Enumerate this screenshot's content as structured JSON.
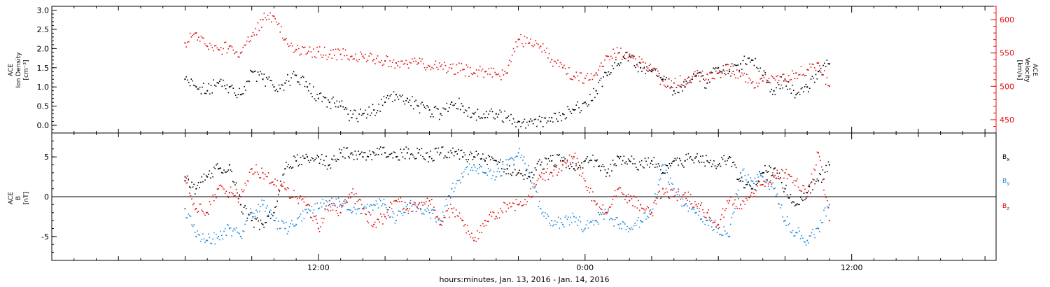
{
  "chart_data": [
    {
      "type": "scatter",
      "panel": "density-velocity",
      "left_axis": {
        "label_lines": [
          "ACE",
          "Ion Density",
          "[cm⁻³]"
        ],
        "range": [
          -0.2,
          3.1
        ],
        "ticks": [
          "0.0",
          "0.5",
          "1.0",
          "1.5",
          "2.0",
          "2.5",
          "3.0"
        ],
        "tick_values": [
          0.0,
          0.5,
          1.0,
          1.5,
          2.0,
          2.5,
          3.0
        ]
      },
      "right_axis": {
        "label_lines": [
          "ACE",
          "Velocity",
          "[km/s]"
        ],
        "range": [
          430,
          620
        ],
        "ticks": [
          "450",
          "500",
          "550",
          "600"
        ],
        "tick_values": [
          450,
          500,
          550,
          600
        ],
        "color": "#e01010"
      },
      "series": [
        {
          "axis": "left",
          "color": "#000000",
          "x": [
            0.0,
            0.5,
            1.0,
            1.5,
            2.0,
            2.5,
            3.0,
            3.5,
            4.0,
            4.5,
            5.0,
            5.5,
            6.0,
            6.5,
            7.0,
            7.5,
            8.0,
            8.5,
            9.0,
            9.5,
            10.0,
            10.5,
            11.0,
            11.5,
            12.0,
            12.5,
            13.0,
            13.5,
            14.0,
            14.5,
            15.0,
            15.5,
            16.0,
            16.5,
            17.0,
            17.5,
            18.0,
            18.5,
            19.0,
            19.5,
            20.0,
            20.5,
            21.0,
            21.5,
            22.0,
            22.5,
            23.0,
            23.5,
            24.0,
            24.5,
            25.0,
            25.5,
            26.0,
            26.5,
            27.0,
            27.5,
            28.0,
            28.5,
            29.0
          ],
          "values": [
            1.2,
            1.0,
            0.9,
            1.1,
            1.0,
            0.8,
            1.4,
            1.2,
            1.0,
            1.1,
            1.3,
            1.0,
            0.7,
            0.6,
            0.5,
            0.2,
            0.3,
            0.4,
            0.6,
            0.8,
            0.7,
            0.5,
            0.4,
            0.3,
            0.6,
            0.5,
            0.3,
            0.2,
            0.3,
            0.2,
            0.1,
            0.1,
            0.1,
            0.2,
            0.3,
            0.4,
            0.6,
            0.9,
            1.3,
            1.6,
            1.8,
            1.5,
            1.4,
            1.2,
            0.9,
            1.0,
            1.3,
            1.1,
            1.5,
            1.4,
            1.6,
            1.7,
            1.3,
            0.9,
            1.2,
            0.8,
            1.0,
            1.4,
            1.6
          ]
        },
        {
          "axis": "right",
          "color": "#e01010",
          "x": [
            0.0,
            0.5,
            1.0,
            1.5,
            2.0,
            2.5,
            3.0,
            3.5,
            4.0,
            4.5,
            5.0,
            5.5,
            6.0,
            6.5,
            7.0,
            7.5,
            8.0,
            8.5,
            9.0,
            9.5,
            10.0,
            10.5,
            11.0,
            11.5,
            12.0,
            12.5,
            13.0,
            13.5,
            14.0,
            14.5,
            15.0,
            15.5,
            16.0,
            16.5,
            17.0,
            17.5,
            18.0,
            18.5,
            19.0,
            19.5,
            20.0,
            20.5,
            21.0,
            21.5,
            22.0,
            22.5,
            23.0,
            23.5,
            24.0,
            24.5,
            25.0,
            25.5,
            26.0,
            26.5,
            27.0,
            27.5,
            28.0,
            28.5,
            29.0
          ],
          "values": [
            565,
            580,
            560,
            555,
            560,
            550,
            575,
            600,
            605,
            570,
            555,
            550,
            552,
            548,
            548,
            545,
            545,
            540,
            538,
            535,
            533,
            535,
            530,
            530,
            527,
            525,
            520,
            522,
            518,
            520,
            570,
            565,
            560,
            540,
            528,
            515,
            512,
            520,
            545,
            550,
            548,
            535,
            525,
            508,
            505,
            510,
            515,
            518,
            520,
            525,
            515,
            505,
            508,
            512,
            510,
            520,
            525,
            535,
            500
          ]
        }
      ]
    },
    {
      "type": "scatter",
      "panel": "magnetic-field",
      "left_axis": {
        "label_lines": [
          "ACE",
          "B",
          "[nT]"
        ],
        "range": [
          -8,
          8
        ],
        "ticks": [
          "-5",
          "0",
          "5"
        ],
        "tick_values": [
          -5,
          0,
          5
        ]
      },
      "legend": [
        "Bx",
        "By",
        "Bz"
      ],
      "legend_colors": [
        "#000000",
        "#1e88d8",
        "#e01010"
      ],
      "series": [
        {
          "name": "Bx",
          "color": "#000000",
          "x": [
            0.0,
            0.5,
            1.0,
            1.5,
            2.0,
            2.5,
            3.0,
            3.5,
            4.0,
            4.5,
            5.0,
            5.5,
            6.0,
            6.5,
            7.0,
            7.5,
            8.0,
            8.5,
            9.0,
            9.5,
            10.0,
            10.5,
            11.0,
            11.5,
            12.0,
            12.5,
            13.0,
            13.5,
            14.0,
            14.5,
            15.0,
            15.5,
            16.0,
            16.5,
            17.0,
            17.5,
            18.0,
            18.5,
            19.0,
            19.5,
            20.0,
            20.5,
            21.0,
            21.5,
            22.0,
            22.5,
            23.0,
            23.5,
            24.0,
            24.5,
            25.0,
            25.5,
            26.0,
            26.5,
            27.0,
            27.5,
            28.0,
            28.5,
            29.0
          ],
          "values": [
            2.0,
            1.0,
            2.5,
            3.5,
            4.0,
            -1.0,
            -3.0,
            -3.5,
            -2.0,
            3.5,
            4.5,
            5.0,
            5.0,
            4.0,
            5.5,
            5.5,
            5.0,
            5.5,
            5.5,
            5.0,
            5.5,
            5.5,
            5.0,
            5.5,
            5.5,
            5.0,
            5.0,
            4.5,
            4.5,
            3.5,
            3.0,
            2.5,
            4.0,
            4.5,
            4.5,
            3.5,
            4.5,
            4.5,
            3.0,
            5.0,
            4.5,
            4.0,
            4.5,
            3.0,
            4.5,
            4.5,
            5.0,
            4.5,
            4.0,
            5.0,
            2.0,
            1.0,
            3.0,
            3.5,
            1.0,
            -1.0,
            0.5,
            2.0,
            4.0
          ]
        },
        {
          "name": "By",
          "color": "#1e88d8",
          "x": [
            0.0,
            0.5,
            1.0,
            1.5,
            2.0,
            2.5,
            3.0,
            3.5,
            4.0,
            4.5,
            5.0,
            5.5,
            6.0,
            6.5,
            7.0,
            7.5,
            8.0,
            8.5,
            9.0,
            9.5,
            10.0,
            10.5,
            11.0,
            11.5,
            12.0,
            12.5,
            13.0,
            13.5,
            14.0,
            14.5,
            15.0,
            15.5,
            16.0,
            16.5,
            17.0,
            17.5,
            18.0,
            18.5,
            19.0,
            19.5,
            20.0,
            20.5,
            21.0,
            21.5,
            22.0,
            22.5,
            23.0,
            23.5,
            24.0,
            24.5,
            25.0,
            25.5,
            26.0,
            26.5,
            27.0,
            27.5,
            28.0,
            28.5,
            29.0
          ],
          "values": [
            -1.5,
            -5.0,
            -5.5,
            -5.0,
            -4.0,
            -5.0,
            -2.0,
            -1.0,
            -3.0,
            -4.0,
            -3.5,
            -2.0,
            -1.5,
            -0.5,
            -1.0,
            -2.0,
            -1.5,
            -1.0,
            -1.0,
            -3.0,
            -1.0,
            -1.5,
            -2.0,
            -3.0,
            1.0,
            2.5,
            4.0,
            3.0,
            2.5,
            4.0,
            5.5,
            3.0,
            -1.5,
            -3.0,
            -3.5,
            -2.5,
            -4.0,
            -3.0,
            -2.0,
            -3.5,
            -4.0,
            -3.0,
            -2.0,
            4.0,
            1.0,
            -1.0,
            -2.0,
            -3.0,
            -4.0,
            -5.0,
            3.0,
            2.0,
            2.5,
            1.0,
            -3.0,
            -4.5,
            -5.5,
            -4.0,
            -1.0
          ]
        },
        {
          "name": "Bz",
          "color": "#e01010",
          "x": [
            0.0,
            0.5,
            1.0,
            1.5,
            2.0,
            2.5,
            3.0,
            3.5,
            4.0,
            4.5,
            5.0,
            5.5,
            6.0,
            6.5,
            7.0,
            7.5,
            8.0,
            8.5,
            9.0,
            9.5,
            10.0,
            10.5,
            11.0,
            11.5,
            12.0,
            12.5,
            13.0,
            13.5,
            14.0,
            14.5,
            15.0,
            15.5,
            16.0,
            16.5,
            17.0,
            17.5,
            18.0,
            18.5,
            19.0,
            19.5,
            20.0,
            20.5,
            21.0,
            21.5,
            22.0,
            22.5,
            23.0,
            23.5,
            24.0,
            24.5,
            25.0,
            25.5,
            26.0,
            26.5,
            27.0,
            27.5,
            28.0,
            28.5,
            29.0
          ],
          "values": [
            2.5,
            -1.5,
            -2.0,
            1.0,
            0.5,
            0.0,
            3.5,
            3.0,
            1.5,
            1.0,
            0.0,
            -1.0,
            -4.0,
            -1.0,
            -2.0,
            0.5,
            -1.5,
            -3.5,
            -2.5,
            -0.5,
            -1.5,
            -1.0,
            -0.5,
            -3.5,
            -1.5,
            -3.0,
            -5.5,
            -3.0,
            -2.5,
            -1.0,
            -1.0,
            0.0,
            2.5,
            3.0,
            4.0,
            5.0,
            2.0,
            -1.0,
            -2.0,
            1.0,
            -0.5,
            -1.0,
            -2.0,
            1.0,
            0.0,
            0.5,
            -1.0,
            -2.0,
            -3.5,
            -0.5,
            -1.0,
            0.5,
            1.5,
            2.5,
            3.0,
            2.0,
            0.0,
            5.5,
            -3.0
          ]
        }
      ]
    }
  ],
  "shared_x_axis": {
    "label": "hours:minutes, Jan. 13, 2016 - Jan. 14, 2016",
    "range": [
      -6.0,
      36.5
    ],
    "ticks": [
      "12:00",
      "0:00",
      "12:00"
    ],
    "tick_values": [
      6.0,
      18.0,
      30.0
    ],
    "minor_step_hours": 1
  }
}
